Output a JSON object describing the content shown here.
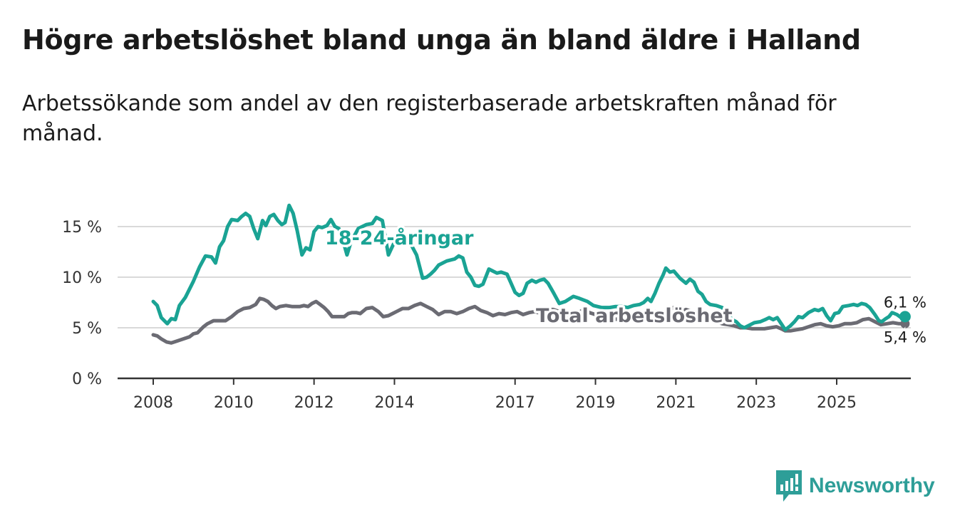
{
  "header": {
    "title": "Högre arbetslöshet bland unga än bland äldre i Halland",
    "subtitle": "Arbetssökande som andel av den registerbaserade arbetskraften månad för månad."
  },
  "brand": {
    "name": "Newsworthy",
    "icon": "newsworthy-logo-icon",
    "color": "#2e9e98"
  },
  "chart_data": {
    "type": "line",
    "title": "Högre arbetslöshet bland unga än bland äldre i Halland",
    "subtitle": "Arbetssökande som andel av den registerbaserade arbetskraften månad för månad.",
    "xlabel": "",
    "ylabel": "",
    "xlim": [
      2008.0,
      2026.8
    ],
    "ylim": [
      0,
      16.5
    ],
    "grid": true,
    "x_ticks": [
      2008,
      2010,
      2012,
      2014,
      2017,
      2019,
      2021,
      2023,
      2025
    ],
    "x_tick_labels": [
      "2008",
      "2010",
      "2012",
      "2014",
      "2017",
      "2019",
      "2021",
      "2023",
      "2025"
    ],
    "y_ticks": [
      0,
      5,
      10,
      15
    ],
    "y_tick_labels": [
      "0 %",
      "5 %",
      "10 %",
      "15 %"
    ],
    "series": [
      {
        "name": "18-24-åringar",
        "color": "#1aa394",
        "last_value_label": "6,1 %",
        "points": [
          [
            2008.0,
            7.6
          ],
          [
            2008.1,
            7.2
          ],
          [
            2008.2,
            6.0
          ],
          [
            2008.35,
            5.4
          ],
          [
            2008.45,
            5.9
          ],
          [
            2008.55,
            5.8
          ],
          [
            2008.65,
            7.2
          ],
          [
            2008.8,
            8.0
          ],
          [
            2009.0,
            9.6
          ],
          [
            2009.15,
            11.0
          ],
          [
            2009.3,
            12.1
          ],
          [
            2009.45,
            12.0
          ],
          [
            2009.55,
            11.4
          ],
          [
            2009.65,
            13.0
          ],
          [
            2009.75,
            13.6
          ],
          [
            2009.85,
            15.0
          ],
          [
            2009.95,
            15.7
          ],
          [
            2010.1,
            15.6
          ],
          [
            2010.2,
            16.0
          ],
          [
            2010.3,
            16.3
          ],
          [
            2010.4,
            16.0
          ],
          [
            2010.5,
            14.8
          ],
          [
            2010.6,
            13.8
          ],
          [
            2010.72,
            15.6
          ],
          [
            2010.8,
            15.1
          ],
          [
            2010.9,
            16.0
          ],
          [
            2011.0,
            16.2
          ],
          [
            2011.1,
            15.6
          ],
          [
            2011.2,
            15.2
          ],
          [
            2011.28,
            15.4
          ],
          [
            2011.38,
            17.1
          ],
          [
            2011.48,
            16.3
          ],
          [
            2011.58,
            14.6
          ],
          [
            2011.7,
            12.2
          ],
          [
            2011.8,
            12.9
          ],
          [
            2011.9,
            12.7
          ],
          [
            2012.0,
            14.5
          ],
          [
            2012.1,
            15.0
          ],
          [
            2012.2,
            14.9
          ],
          [
            2012.32,
            15.1
          ],
          [
            2012.42,
            15.7
          ],
          [
            2012.52,
            15.0
          ],
          [
            2012.62,
            14.8
          ],
          [
            2012.72,
            13.6
          ],
          [
            2012.82,
            12.2
          ],
          [
            2012.92,
            13.5
          ],
          [
            2013.1,
            14.8
          ],
          [
            2013.3,
            15.2
          ],
          [
            2013.45,
            15.3
          ],
          [
            2013.55,
            15.9
          ],
          [
            2013.7,
            15.6
          ],
          [
            2013.85,
            12.2
          ],
          [
            2014.05,
            13.9
          ],
          [
            2014.2,
            13.9
          ],
          [
            2014.35,
            13.7
          ],
          [
            2014.55,
            12.2
          ],
          [
            2014.7,
            9.9
          ],
          [
            2014.8,
            10.0
          ],
          [
            2014.9,
            10.3
          ],
          [
            2015.0,
            10.7
          ],
          [
            2015.1,
            11.2
          ],
          [
            2015.3,
            11.6
          ],
          [
            2015.5,
            11.8
          ],
          [
            2015.6,
            12.1
          ],
          [
            2015.7,
            11.9
          ],
          [
            2015.8,
            10.5
          ],
          [
            2015.9,
            10.0
          ],
          [
            2016.0,
            9.2
          ],
          [
            2016.1,
            9.1
          ],
          [
            2016.2,
            9.3
          ],
          [
            2016.35,
            10.8
          ],
          [
            2016.45,
            10.6
          ],
          [
            2016.55,
            10.4
          ],
          [
            2016.65,
            10.5
          ],
          [
            2016.8,
            10.3
          ],
          [
            2016.9,
            9.4
          ],
          [
            2017.0,
            8.5
          ],
          [
            2017.1,
            8.2
          ],
          [
            2017.2,
            8.4
          ],
          [
            2017.3,
            9.4
          ],
          [
            2017.42,
            9.7
          ],
          [
            2017.52,
            9.5
          ],
          [
            2017.62,
            9.7
          ],
          [
            2017.72,
            9.8
          ],
          [
            2017.82,
            9.4
          ],
          [
            2017.95,
            8.5
          ],
          [
            2018.1,
            7.4
          ],
          [
            2018.25,
            7.6
          ],
          [
            2018.45,
            8.1
          ],
          [
            2018.6,
            7.9
          ],
          [
            2018.8,
            7.6
          ],
          [
            2018.95,
            7.2
          ],
          [
            2019.15,
            7.0
          ],
          [
            2019.35,
            7.0
          ],
          [
            2019.5,
            7.1
          ],
          [
            2019.65,
            7.1
          ],
          [
            2019.8,
            7.0
          ],
          [
            2019.95,
            7.2
          ],
          [
            2020.1,
            7.3
          ],
          [
            2020.2,
            7.5
          ],
          [
            2020.3,
            7.9
          ],
          [
            2020.38,
            7.6
          ],
          [
            2020.48,
            8.4
          ],
          [
            2020.58,
            9.4
          ],
          [
            2020.68,
            10.2
          ],
          [
            2020.75,
            10.9
          ],
          [
            2020.85,
            10.5
          ],
          [
            2020.95,
            10.6
          ],
          [
            2021.1,
            9.9
          ],
          [
            2021.25,
            9.4
          ],
          [
            2021.35,
            9.8
          ],
          [
            2021.45,
            9.5
          ],
          [
            2021.55,
            8.6
          ],
          [
            2021.65,
            8.3
          ],
          [
            2021.75,
            7.6
          ],
          [
            2021.85,
            7.3
          ],
          [
            2022.0,
            7.2
          ],
          [
            2022.15,
            7.0
          ],
          [
            2022.3,
            6.3
          ],
          [
            2022.4,
            5.8
          ],
          [
            2022.5,
            5.6
          ],
          [
            2022.6,
            5.2
          ],
          [
            2022.7,
            5.0
          ],
          [
            2022.8,
            5.2
          ],
          [
            2022.95,
            5.5
          ],
          [
            2023.1,
            5.6
          ],
          [
            2023.22,
            5.8
          ],
          [
            2023.32,
            6.0
          ],
          [
            2023.42,
            5.8
          ],
          [
            2023.52,
            6.0
          ],
          [
            2023.62,
            5.4
          ],
          [
            2023.72,
            4.8
          ],
          [
            2023.85,
            5.2
          ],
          [
            2023.95,
            5.6
          ],
          [
            2024.05,
            6.1
          ],
          [
            2024.15,
            6.0
          ],
          [
            2024.3,
            6.5
          ],
          [
            2024.45,
            6.8
          ],
          [
            2024.55,
            6.7
          ],
          [
            2024.65,
            6.9
          ],
          [
            2024.75,
            6.2
          ],
          [
            2024.85,
            5.7
          ],
          [
            2024.95,
            6.4
          ],
          [
            2025.05,
            6.5
          ],
          [
            2025.15,
            7.1
          ],
          [
            2025.3,
            7.2
          ],
          [
            2025.42,
            7.3
          ],
          [
            2025.52,
            7.2
          ],
          [
            2025.62,
            7.4
          ],
          [
            2025.72,
            7.3
          ],
          [
            2025.82,
            7.0
          ],
          [
            2025.95,
            6.3
          ],
          [
            2026.05,
            5.7
          ],
          [
            2026.12,
            5.6
          ],
          [
            2026.22,
            5.9
          ],
          [
            2026.3,
            6.1
          ],
          [
            2026.38,
            6.5
          ],
          [
            2026.5,
            6.3
          ],
          [
            2026.6,
            6.0
          ],
          [
            2026.7,
            6.1
          ]
        ]
      },
      {
        "name": "Total arbetslöshet",
        "color": "#6b6b73",
        "last_value_label": "5,4 %",
        "points": [
          [
            2008.0,
            4.3
          ],
          [
            2008.1,
            4.2
          ],
          [
            2008.2,
            3.9
          ],
          [
            2008.33,
            3.6
          ],
          [
            2008.45,
            3.5
          ],
          [
            2008.6,
            3.7
          ],
          [
            2008.75,
            3.9
          ],
          [
            2008.9,
            4.1
          ],
          [
            2009.0,
            4.4
          ],
          [
            2009.1,
            4.5
          ],
          [
            2009.25,
            5.1
          ],
          [
            2009.35,
            5.4
          ],
          [
            2009.5,
            5.7
          ],
          [
            2009.65,
            5.7
          ],
          [
            2009.8,
            5.7
          ],
          [
            2009.95,
            6.1
          ],
          [
            2010.1,
            6.6
          ],
          [
            2010.25,
            6.9
          ],
          [
            2010.4,
            7.0
          ],
          [
            2010.55,
            7.3
          ],
          [
            2010.65,
            7.9
          ],
          [
            2010.75,
            7.8
          ],
          [
            2010.85,
            7.6
          ],
          [
            2010.95,
            7.2
          ],
          [
            2011.05,
            6.9
          ],
          [
            2011.15,
            7.1
          ],
          [
            2011.3,
            7.2
          ],
          [
            2011.45,
            7.1
          ],
          [
            2011.55,
            7.1
          ],
          [
            2011.65,
            7.1
          ],
          [
            2011.75,
            7.2
          ],
          [
            2011.85,
            7.1
          ],
          [
            2011.95,
            7.4
          ],
          [
            2012.05,
            7.6
          ],
          [
            2012.15,
            7.3
          ],
          [
            2012.25,
            7.0
          ],
          [
            2012.35,
            6.6
          ],
          [
            2012.45,
            6.1
          ],
          [
            2012.6,
            6.1
          ],
          [
            2012.75,
            6.1
          ],
          [
            2012.85,
            6.4
          ],
          [
            2012.95,
            6.5
          ],
          [
            2013.05,
            6.5
          ],
          [
            2013.15,
            6.4
          ],
          [
            2013.3,
            6.9
          ],
          [
            2013.45,
            7.0
          ],
          [
            2013.6,
            6.6
          ],
          [
            2013.72,
            6.1
          ],
          [
            2013.85,
            6.2
          ],
          [
            2013.95,
            6.4
          ],
          [
            2014.05,
            6.6
          ],
          [
            2014.2,
            6.9
          ],
          [
            2014.35,
            6.9
          ],
          [
            2014.5,
            7.2
          ],
          [
            2014.65,
            7.4
          ],
          [
            2014.8,
            7.1
          ],
          [
            2014.95,
            6.8
          ],
          [
            2015.1,
            6.3
          ],
          [
            2015.25,
            6.6
          ],
          [
            2015.4,
            6.6
          ],
          [
            2015.55,
            6.4
          ],
          [
            2015.7,
            6.6
          ],
          [
            2015.85,
            6.9
          ],
          [
            2016.0,
            7.1
          ],
          [
            2016.15,
            6.7
          ],
          [
            2016.3,
            6.5
          ],
          [
            2016.45,
            6.2
          ],
          [
            2016.6,
            6.4
          ],
          [
            2016.75,
            6.3
          ],
          [
            2016.9,
            6.5
          ],
          [
            2017.05,
            6.6
          ],
          [
            2017.2,
            6.3
          ],
          [
            2017.35,
            6.5
          ],
          [
            2017.5,
            6.6
          ],
          [
            2017.65,
            6.4
          ],
          [
            2017.8,
            6.8
          ],
          [
            2017.95,
            6.8
          ],
          [
            2018.1,
            6.6
          ],
          [
            2018.25,
            6.2
          ],
          [
            2018.4,
            6.0
          ],
          [
            2018.55,
            6.4
          ],
          [
            2018.7,
            6.8
          ],
          [
            2018.85,
            6.5
          ],
          [
            2019.0,
            6.3
          ],
          [
            2019.15,
            5.9
          ],
          [
            2019.3,
            5.9
          ],
          [
            2019.45,
            5.8
          ],
          [
            2019.6,
            5.9
          ],
          [
            2019.75,
            6.3
          ],
          [
            2019.9,
            6.2
          ],
          [
            2020.05,
            6.0
          ],
          [
            2020.2,
            6.0
          ],
          [
            2020.35,
            6.5
          ],
          [
            2020.5,
            6.6
          ],
          [
            2020.65,
            6.5
          ],
          [
            2020.8,
            6.7
          ],
          [
            2020.95,
            7.0
          ],
          [
            2021.1,
            6.5
          ],
          [
            2021.25,
            6.8
          ],
          [
            2021.4,
            6.6
          ],
          [
            2021.55,
            6.1
          ],
          [
            2021.7,
            5.8
          ],
          [
            2021.85,
            5.8
          ],
          [
            2022.0,
            5.6
          ],
          [
            2022.15,
            5.4
          ],
          [
            2022.3,
            5.3
          ],
          [
            2022.45,
            5.2
          ],
          [
            2022.6,
            5.0
          ],
          [
            2022.75,
            5.0
          ],
          [
            2022.9,
            4.9
          ],
          [
            2023.05,
            4.9
          ],
          [
            2023.2,
            4.9
          ],
          [
            2023.35,
            5.0
          ],
          [
            2023.5,
            5.1
          ],
          [
            2023.62,
            4.9
          ],
          [
            2023.72,
            4.7
          ],
          [
            2023.85,
            4.7
          ],
          [
            2024.0,
            4.8
          ],
          [
            2024.15,
            4.9
          ],
          [
            2024.3,
            5.1
          ],
          [
            2024.45,
            5.3
          ],
          [
            2024.6,
            5.4
          ],
          [
            2024.75,
            5.2
          ],
          [
            2024.9,
            5.1
          ],
          [
            2025.05,
            5.2
          ],
          [
            2025.2,
            5.4
          ],
          [
            2025.35,
            5.4
          ],
          [
            2025.5,
            5.5
          ],
          [
            2025.65,
            5.8
          ],
          [
            2025.8,
            5.9
          ],
          [
            2025.95,
            5.6
          ],
          [
            2026.1,
            5.3
          ],
          [
            2026.25,
            5.4
          ],
          [
            2026.4,
            5.5
          ],
          [
            2026.55,
            5.4
          ],
          [
            2026.7,
            5.4
          ]
        ]
      }
    ]
  }
}
